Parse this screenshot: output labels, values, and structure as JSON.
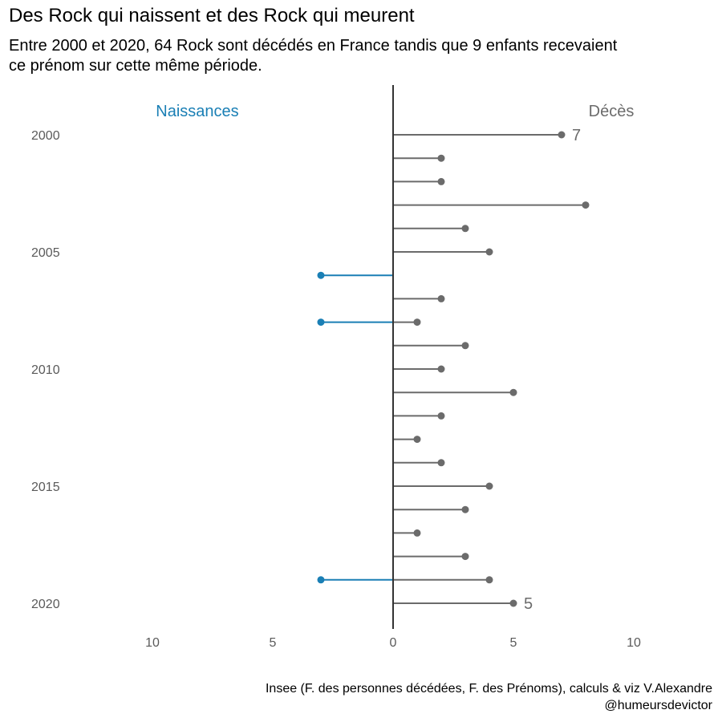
{
  "title": "Des Rock qui naissent et des Rock qui meurent",
  "subtitle": "Entre 2000 et 2020, 64 Rock sont décédés en France tandis que 9 enfants recevaient ce prénom sur cette même période.",
  "caption": "Insee (F. des personnes décédées, F. des Prénoms), calculs & viz V.Alexandre @humeursdevictor",
  "colors": {
    "naissances": "#1a7fb5",
    "deces": "#6b6b6b",
    "axis": "#333333",
    "tick_text": "#5a5a5a"
  },
  "chart_data": {
    "type": "lollipop",
    "years": [
      2000,
      2001,
      2002,
      2003,
      2004,
      2005,
      2006,
      2007,
      2008,
      2009,
      2010,
      2011,
      2012,
      2013,
      2014,
      2015,
      2016,
      2017,
      2018,
      2019,
      2020
    ],
    "series": [
      {
        "name": "Décès",
        "side": "right",
        "values": [
          7,
          2,
          2,
          8,
          3,
          4,
          0,
          2,
          1,
          3,
          2,
          5,
          2,
          1,
          2,
          4,
          3,
          1,
          3,
          4,
          5
        ]
      },
      {
        "name": "Naissances",
        "side": "left",
        "values": [
          0,
          0,
          0,
          0,
          0,
          0,
          3,
          0,
          3,
          0,
          0,
          0,
          0,
          0,
          0,
          0,
          0,
          0,
          0,
          3,
          0
        ]
      }
    ],
    "annotations": [
      {
        "year": 2000,
        "text": "7"
      },
      {
        "year": 2020,
        "text": "5"
      }
    ],
    "y_tick_labels": [
      "2000",
      "2005",
      "2010",
      "2015",
      "2020"
    ],
    "x_tick_labels": [
      "10",
      "5",
      "0",
      "5",
      "10"
    ],
    "xlim": [
      -10,
      10
    ],
    "grid": false
  }
}
